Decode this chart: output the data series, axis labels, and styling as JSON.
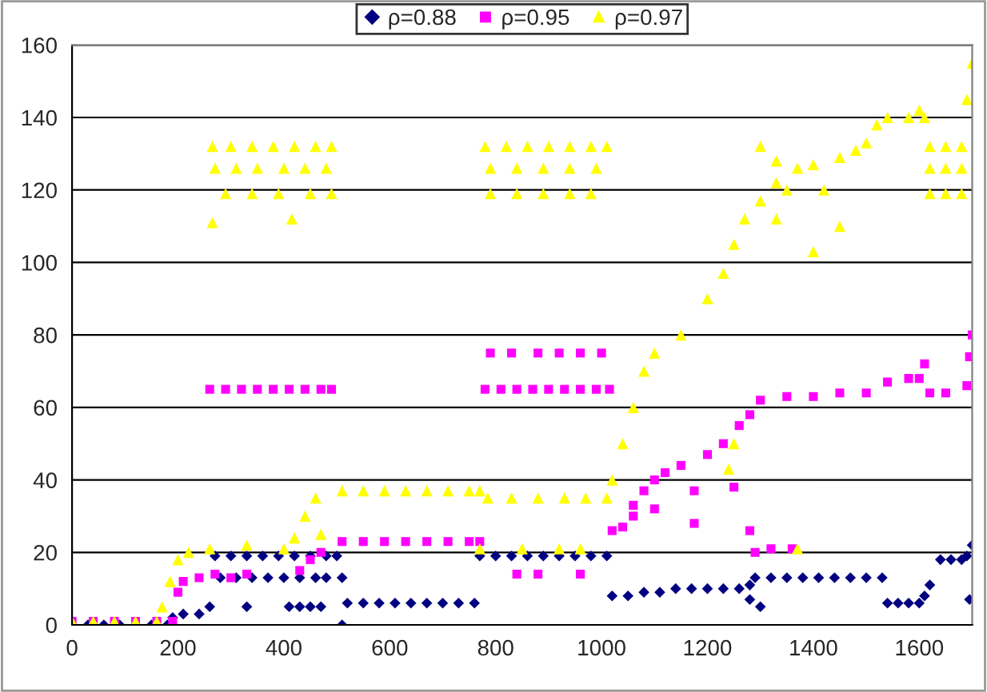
{
  "chart_data": {
    "type": "scatter",
    "xlim": [
      0,
      1700
    ],
    "xticks": [
      0,
      200,
      400,
      600,
      800,
      1000,
      1200,
      1400,
      1600
    ],
    "ylim": [
      0,
      160
    ],
    "yticks": [
      0,
      20,
      40,
      60,
      80,
      100,
      120,
      140,
      160
    ],
    "grid": "y",
    "legend": "top",
    "series": [
      {
        "name": "ρ=0.88",
        "color": "#000080",
        "marker": "diamond",
        "x": [
          30,
          60,
          90,
          150,
          180,
          190,
          210,
          240,
          260,
          270,
          300,
          330,
          360,
          390,
          420,
          450,
          480,
          500,
          280,
          310,
          340,
          370,
          400,
          430,
          460,
          480,
          330,
          410,
          430,
          450,
          470,
          510,
          510,
          520,
          550,
          580,
          610,
          640,
          670,
          700,
          730,
          760,
          770,
          800,
          830,
          860,
          890,
          920,
          950,
          980,
          1010,
          1020,
          1050,
          1080,
          1110,
          1140,
          1170,
          1200,
          1230,
          1260,
          1280,
          1280,
          1300,
          1290,
          1320,
          1350,
          1380,
          1410,
          1440,
          1470,
          1500,
          1530,
          1540,
          1560,
          1580,
          1600,
          1610,
          1620,
          1640,
          1660,
          1680,
          1690,
          1700,
          1695
        ],
        "values": [
          0,
          0,
          0,
          0,
          0,
          2,
          3,
          3,
          5,
          19,
          19,
          19,
          19,
          19,
          19,
          19,
          19,
          19,
          13,
          13,
          13,
          13,
          13,
          13,
          13,
          13,
          5,
          5,
          5,
          5,
          5,
          13,
          0,
          6,
          6,
          6,
          6,
          6,
          6,
          6,
          6,
          6,
          19,
          19,
          19,
          19,
          19,
          19,
          19,
          19,
          19,
          8,
          8,
          9,
          9,
          10,
          10,
          10,
          10,
          10,
          11,
          7,
          5,
          13,
          13,
          13,
          13,
          13,
          13,
          13,
          13,
          13,
          6,
          6,
          6,
          6,
          8,
          11,
          18,
          18,
          18,
          19,
          22,
          7
        ]
      },
      {
        "name": "ρ=0.95",
        "color": "#ff00ff",
        "marker": "square",
        "x": [
          0,
          40,
          80,
          120,
          160,
          190,
          200,
          210,
          240,
          270,
          300,
          330,
          260,
          290,
          320,
          350,
          380,
          410,
          440,
          470,
          490,
          430,
          450,
          470,
          510,
          550,
          590,
          630,
          670,
          710,
          750,
          770,
          780,
          810,
          840,
          870,
          900,
          930,
          960,
          990,
          1015,
          790,
          830,
          880,
          920,
          960,
          1000,
          840,
          880,
          960,
          1020,
          1040,
          1060,
          1080,
          1100,
          1120,
          1150,
          1200,
          1230,
          1260,
          1280,
          1300,
          1350,
          1400,
          1450,
          1500,
          1540,
          1580,
          1600,
          1610,
          1620,
          1650,
          1690,
          1695,
          1700,
          1060,
          1100,
          1175,
          1175,
          1250,
          1280,
          1290,
          1320,
          1360
        ],
        "values": [
          1,
          1,
          1,
          1,
          1,
          1,
          9,
          12,
          13,
          14,
          13,
          14,
          65,
          65,
          65,
          65,
          65,
          65,
          65,
          65,
          65,
          15,
          18,
          20,
          23,
          23,
          23,
          23,
          23,
          23,
          23,
          23,
          65,
          65,
          65,
          65,
          65,
          65,
          65,
          65,
          65,
          75,
          75,
          75,
          75,
          75,
          75,
          14,
          14,
          14,
          26,
          27,
          30,
          37,
          40,
          42,
          44,
          47,
          50,
          55,
          58,
          62,
          63,
          63,
          64,
          64,
          67,
          68,
          68,
          72,
          64,
          64,
          66,
          74,
          80,
          33,
          32,
          28,
          37,
          38,
          26,
          20,
          21,
          21
        ]
      },
      {
        "name": "ρ=0.97",
        "color": "#ffff00",
        "marker": "triangle",
        "x": [
          0,
          40,
          80,
          120,
          160,
          170,
          185,
          200,
          220,
          260,
          330,
          400,
          420,
          440,
          460,
          470,
          265,
          300,
          340,
          380,
          420,
          460,
          490,
          270,
          310,
          350,
          400,
          440,
          480,
          290,
          340,
          390,
          450,
          490,
          265,
          415,
          510,
          550,
          590,
          630,
          670,
          710,
          750,
          770,
          780,
          820,
          860,
          900,
          940,
          980,
          1010,
          790,
          840,
          890,
          940,
          990,
          790,
          840,
          890,
          940,
          980,
          785,
          830,
          880,
          930,
          970,
          1010,
          770,
          850,
          920,
          960,
          1020,
          1040,
          1060,
          1080,
          1100,
          1150,
          1200,
          1230,
          1250,
          1270,
          1300,
          1330,
          1370,
          1400,
          1450,
          1480,
          1500,
          1520,
          1540,
          1580,
          1600,
          1610,
          1620,
          1650,
          1680,
          1690,
          1700,
          1300,
          1330,
          1350,
          1330,
          1400,
          1450,
          1420,
          1250,
          1240,
          1370,
          1620,
          1650,
          1680,
          1620,
          1650,
          1680
        ],
        "values": [
          1,
          1,
          1,
          1,
          1,
          5,
          12,
          18,
          20,
          21,
          22,
          21,
          24,
          30,
          35,
          25,
          132,
          132,
          132,
          132,
          132,
          132,
          132,
          126,
          126,
          126,
          126,
          126,
          126,
          119,
          119,
          119,
          119,
          119,
          111,
          112,
          37,
          37,
          37,
          37,
          37,
          37,
          37,
          37,
          132,
          132,
          132,
          132,
          132,
          132,
          132,
          126,
          126,
          126,
          126,
          126,
          119,
          119,
          119,
          119,
          119,
          35,
          35,
          35,
          35,
          35,
          35,
          21,
          21,
          21,
          21,
          40,
          50,
          60,
          70,
          75,
          80,
          90,
          97,
          105,
          112,
          117,
          122,
          126,
          127,
          129,
          131,
          133,
          138,
          140,
          140,
          142,
          140,
          132,
          132,
          132,
          145,
          155,
          132,
          128,
          120,
          112,
          103,
          110,
          120,
          50,
          43,
          21,
          126,
          126,
          126,
          119,
          119,
          119
        ]
      }
    ]
  }
}
